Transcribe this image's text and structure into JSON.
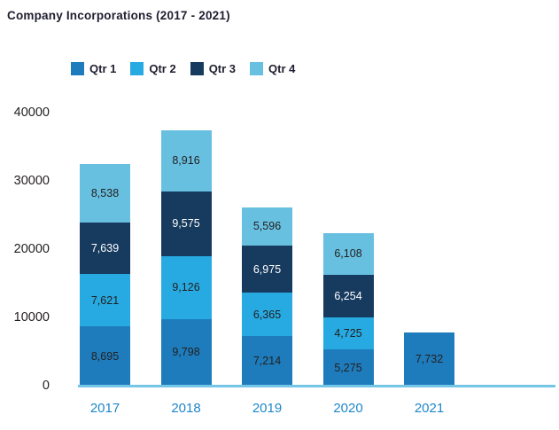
{
  "title": "Company Incorporations (2017 - 2021)",
  "colors": {
    "title_text": "#1E1E30",
    "tick_text": "#231F20",
    "x_label": "#1F87C9",
    "axis_line": "#74C6E6",
    "background": "#FFFFFF"
  },
  "chart_data": {
    "type": "bar",
    "stacked": true,
    "title": "Company Incorporations (2017 - 2021)",
    "categories": [
      "2017",
      "2018",
      "2019",
      "2020",
      "2021"
    ],
    "series": [
      {
        "name": "Qtr 1",
        "color": "#1E7CBC",
        "label_color": "#231F20",
        "values": [
          8695,
          9798,
          7214,
          5275,
          7732
        ]
      },
      {
        "name": "Qtr 2",
        "color": "#27AAE1",
        "label_color": "#231F20",
        "values": [
          7621,
          9126,
          6365,
          4725,
          null
        ]
      },
      {
        "name": "Qtr 3",
        "color": "#173A5F",
        "label_color": "#FFFFFF",
        "values": [
          7639,
          9575,
          6975,
          6254,
          null
        ]
      },
      {
        "name": "Qtr 4",
        "color": "#68C0E1",
        "label_color": "#231F20",
        "values": [
          8538,
          8916,
          5596,
          6108,
          null
        ]
      }
    ],
    "totals": [
      32493,
      37415,
      26150,
      22362,
      7732
    ],
    "xlabel": "",
    "ylabel": "",
    "ylim": [
      0,
      40000
    ],
    "yticks": [
      0,
      10000,
      20000,
      30000,
      40000
    ],
    "grid": false,
    "legend_position": "top",
    "data_labels": true,
    "number_format": "thousands-comma"
  }
}
